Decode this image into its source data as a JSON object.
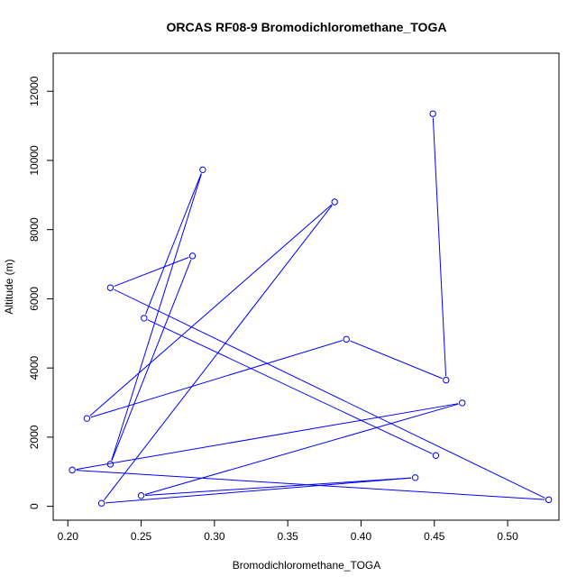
{
  "chart_data": {
    "type": "line",
    "title": "ORCAS RF08-9 Bromodichloromethane_TOGA",
    "xlabel": "Bromodichloromethane_TOGA",
    "ylabel": "Altitude (m)",
    "xlim": [
      0.19,
      0.535
    ],
    "ylim": [
      -400,
      13100
    ],
    "xticks": [
      0.2,
      0.25,
      0.3,
      0.35,
      0.4,
      0.45,
      0.5
    ],
    "xtick_labels": [
      "0.20",
      "0.25",
      "0.30",
      "0.35",
      "0.40",
      "0.45",
      "0.50"
    ],
    "yticks": [
      0,
      2000,
      4000,
      6000,
      8000,
      10000,
      12000
    ],
    "ytick_labels": [
      "0",
      "2000",
      "4000",
      "6000",
      "8000",
      "10000",
      "12000"
    ],
    "grid": false,
    "series": [
      {
        "color": "#0000ff",
        "marker": "open-circle",
        "points": [
          {
            "x": 0.449,
            "y": 11350
          },
          {
            "x": 0.458,
            "y": 3650
          },
          {
            "x": 0.39,
            "y": 4830
          },
          {
            "x": 0.213,
            "y": 2540
          },
          {
            "x": 0.382,
            "y": 8800
          },
          {
            "x": 0.223,
            "y": 90
          },
          {
            "x": 0.437,
            "y": 830
          },
          {
            "x": 0.25,
            "y": 310
          },
          {
            "x": 0.469,
            "y": 2990
          },
          {
            "x": 0.203,
            "y": 1050
          },
          {
            "x": 0.528,
            "y": 190
          },
          {
            "x": 0.229,
            "y": 6320
          },
          {
            "x": 0.285,
            "y": 7240
          },
          {
            "x": 0.229,
            "y": 1220
          },
          {
            "x": 0.292,
            "y": 9730
          },
          {
            "x": 0.252,
            "y": 5440
          },
          {
            "x": 0.451,
            "y": 1470
          }
        ]
      }
    ]
  }
}
